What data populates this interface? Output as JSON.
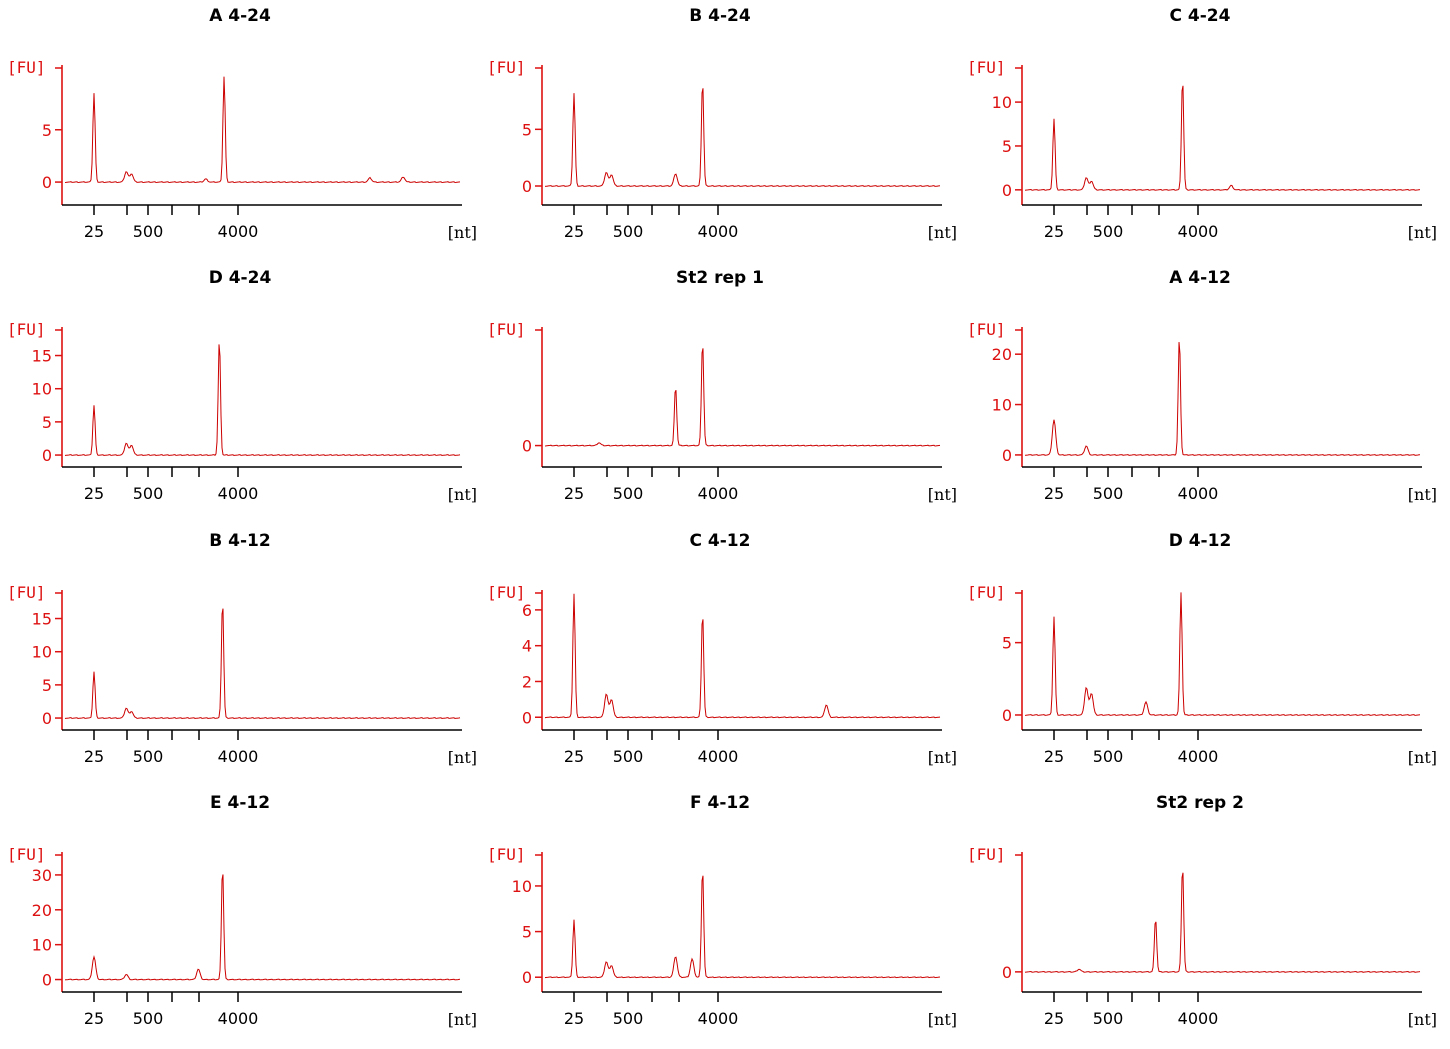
{
  "page": {
    "background": "#ffffff"
  },
  "colors": {
    "trace": "#cc0000",
    "y_axis": "#dd1111",
    "x_axis": "#000000"
  },
  "common": {
    "y_unit": "[FU]",
    "x_unit": "[nt]",
    "x_tick_labels": [
      "25",
      "500",
      "4000"
    ],
    "x_scale": "ladder (log-like, nucleotides)"
  },
  "chart_data": [
    {
      "type": "line",
      "title": "A 4-24",
      "ylim": [
        -2,
        11
      ],
      "yticks": [
        0,
        5
      ],
      "peaks": [
        {
          "x": 25,
          "y": 8.5
        },
        {
          "x": 150,
          "y": 1.0
        },
        {
          "x": 200,
          "y": 0.8
        },
        {
          "x": 1900,
          "y": 0.3
        },
        {
          "x": 2900,
          "y": 10.1
        },
        {
          "x": 20000,
          "y": 0.4
        },
        {
          "x": 30000,
          "y": 0.5
        }
      ]
    },
    {
      "type": "line",
      "title": "B 4-24",
      "ylim": [
        -1.5,
        10.5
      ],
      "yticks": [
        0,
        5
      ],
      "peaks": [
        {
          "x": 25,
          "y": 8.2
        },
        {
          "x": 150,
          "y": 1.2
        },
        {
          "x": 200,
          "y": 1.0
        },
        {
          "x": 1500,
          "y": 1.1
        },
        {
          "x": 2800,
          "y": 9.3
        }
      ]
    },
    {
      "type": "line",
      "title": "C 4-24",
      "ylim": [
        -1.5,
        14
      ],
      "yticks": [
        0,
        5,
        10
      ],
      "peaks": [
        {
          "x": 25,
          "y": 8.1
        },
        {
          "x": 150,
          "y": 1.4
        },
        {
          "x": 200,
          "y": 1.0
        },
        {
          "x": 2800,
          "y": 12.8
        },
        {
          "x": 6000,
          "y": 0.5
        }
      ]
    },
    {
      "type": "line",
      "title": "D 4-24",
      "ylim": [
        -1.5,
        19
      ],
      "yticks": [
        0,
        5,
        10,
        15
      ],
      "peaks": [
        {
          "x": 25,
          "y": 7.5
        },
        {
          "x": 150,
          "y": 1.8
        },
        {
          "x": 200,
          "y": 1.5
        },
        {
          "x": 2600,
          "y": 17.5
        }
      ]
    },
    {
      "type": "line",
      "title": "St2 rep 1",
      "ylim": [
        -0.2,
        1.2
      ],
      "yticks": [
        0
      ],
      "peaks": [
        {
          "x": 100,
          "y": 0.03
        },
        {
          "x": 1500,
          "y": 0.62
        },
        {
          "x": 2800,
          "y": 1.08
        }
      ]
    },
    {
      "type": "line",
      "title": "A 4-12",
      "ylim": [
        -2,
        25
      ],
      "yticks": [
        0,
        10,
        20
      ],
      "peaks": [
        {
          "x": 25,
          "y": 7.0
        },
        {
          "x": 150,
          "y": 1.8
        },
        {
          "x": 2600,
          "y": 23.5
        }
      ]
    },
    {
      "type": "line",
      "title": "B 4-12",
      "ylim": [
        -1.5,
        19
      ],
      "yticks": [
        0,
        5,
        10,
        15
      ],
      "peaks": [
        {
          "x": 25,
          "y": 7.0
        },
        {
          "x": 150,
          "y": 1.5
        },
        {
          "x": 200,
          "y": 1.0
        },
        {
          "x": 2800,
          "y": 17.8
        }
      ]
    },
    {
      "type": "line",
      "title": "C 4-12",
      "ylim": [
        -0.6,
        7
      ],
      "yticks": [
        0,
        2,
        4,
        6
      ],
      "peaks": [
        {
          "x": 25,
          "y": 6.9
        },
        {
          "x": 150,
          "y": 1.3
        },
        {
          "x": 200,
          "y": 1.0
        },
        {
          "x": 2800,
          "y": 5.9
        },
        {
          "x": 15000,
          "y": 0.7
        }
      ]
    },
    {
      "type": "line",
      "title": "D 4-12",
      "ylim": [
        -0.9,
        8.5
      ],
      "yticks": [
        0,
        5
      ],
      "peaks": [
        {
          "x": 25,
          "y": 6.8
        },
        {
          "x": 150,
          "y": 1.9
        },
        {
          "x": 200,
          "y": 1.5
        },
        {
          "x": 1200,
          "y": 0.9
        },
        {
          "x": 2700,
          "y": 8.5
        }
      ]
    },
    {
      "type": "line",
      "title": "E 4-12",
      "ylim": [
        -3,
        36
      ],
      "yticks": [
        0,
        10,
        20,
        30
      ],
      "peaks": [
        {
          "x": 25,
          "y": 6.5
        },
        {
          "x": 150,
          "y": 1.5
        },
        {
          "x": 1600,
          "y": 3.0
        },
        {
          "x": 2800,
          "y": 32.5
        }
      ]
    },
    {
      "type": "line",
      "title": "F 4-12",
      "ylim": [
        -1.4,
        13.5
      ],
      "yticks": [
        0,
        5,
        10
      ],
      "peaks": [
        {
          "x": 25,
          "y": 6.3
        },
        {
          "x": 150,
          "y": 1.7
        },
        {
          "x": 200,
          "y": 1.3
        },
        {
          "x": 1500,
          "y": 2.3
        },
        {
          "x": 2200,
          "y": 2.0
        },
        {
          "x": 2800,
          "y": 12.0
        }
      ]
    },
    {
      "type": "line",
      "title": "St2 rep 2",
      "ylim": [
        -0.2,
        1.3
      ],
      "yticks": [
        0
      ],
      "peaks": [
        {
          "x": 100,
          "y": 0.03
        },
        {
          "x": 1500,
          "y": 0.6
        },
        {
          "x": 2800,
          "y": 1.18
        }
      ]
    }
  ]
}
